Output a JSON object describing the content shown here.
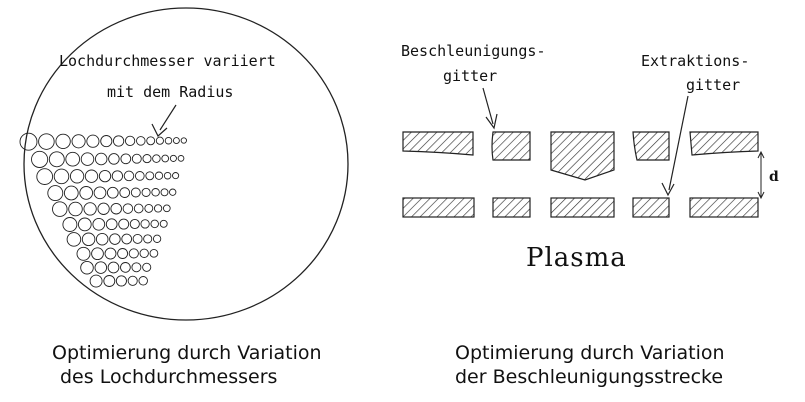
{
  "left_panel": {
    "annotation_line1": "Lochdurchmesser variiert",
    "annotation_line2": "mit dem Radius",
    "caption_line1": "Optimierung durch Variation",
    "caption_line2": "des Lochdurchmessers"
  },
  "right_panel": {
    "accel_grid_line1": "Beschleunigungs-",
    "accel_grid_line2": "gitter",
    "extract_grid_line1": "Extraktions-",
    "extract_grid_line2": "gitter",
    "gap_label": "d",
    "plasma_label": "Plasma",
    "caption_line1": "Optimierung durch Variation",
    "caption_line2": "der Beschleunigungsstrecke"
  },
  "colors": {
    "line": "#222222",
    "hatch": "#333333"
  }
}
